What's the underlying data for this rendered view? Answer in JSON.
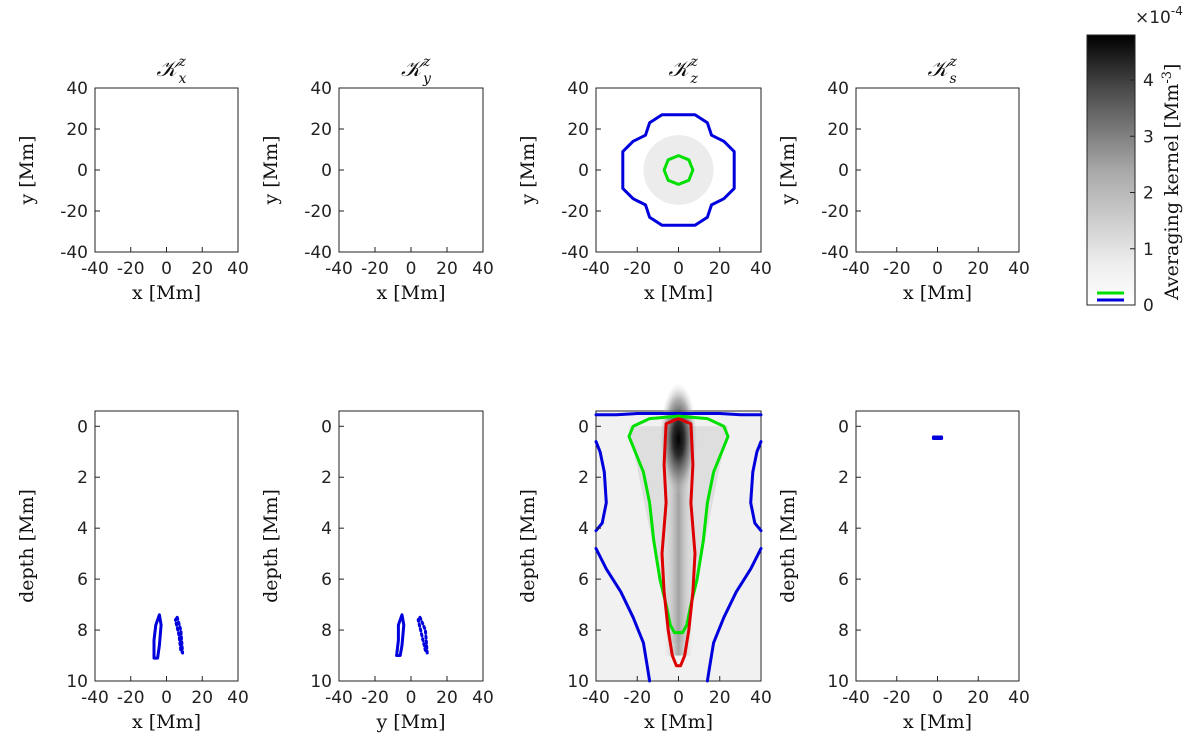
{
  "figure": {
    "colorbar": {
      "label": "Averaging kernel [Mm",
      "label_sup": "-3",
      "label_end": "]",
      "exponent_prefix": "×10",
      "exponent_sup": "-4",
      "range": [
        0,
        4.8
      ],
      "ticks": [
        "0",
        "1",
        "2",
        "3",
        "4"
      ],
      "legend_swatches": [
        "#00e000",
        "#0000dd"
      ]
    }
  },
  "chart_data": [
    {
      "type": "heatmap",
      "title_main": "𝒦",
      "title_sup": "z",
      "title_sub": "x",
      "xlabel": "x [Mm]",
      "ylabel": "y [Mm]",
      "xlim": [
        -40,
        40
      ],
      "ylim": [
        -40,
        40
      ],
      "xticks": [
        "-40",
        "-20",
        "0",
        "20",
        "40"
      ],
      "yticks": [
        "40",
        "20",
        "0",
        "-20",
        "-40"
      ],
      "contours": []
    },
    {
      "type": "heatmap",
      "title_main": "𝒦",
      "title_sup": "z",
      "title_sub": "y",
      "xlabel": "x [Mm]",
      "ylabel": "y [Mm]",
      "xlim": [
        -40,
        40
      ],
      "ylim": [
        -40,
        40
      ],
      "xticks": [
        "-40",
        "-20",
        "0",
        "20",
        "40"
      ],
      "yticks": [
        "40",
        "20",
        "0",
        "-20",
        "-40"
      ],
      "contours": []
    },
    {
      "type": "heatmap",
      "title_main": "𝒦",
      "title_sup": "z",
      "title_sub": "z",
      "xlabel": "x [Mm]",
      "ylabel": "y [Mm]",
      "xlim": [
        -40,
        40
      ],
      "ylim": [
        -40,
        40
      ],
      "xticks": [
        "-40",
        "-20",
        "0",
        "20",
        "40"
      ],
      "yticks": [
        "40",
        "20",
        "0",
        "-20",
        "-40"
      ],
      "contours": [
        {
          "color": "#0000dd",
          "dashed": false,
          "points": [
            [
              0,
              27
            ],
            [
              8,
              27
            ],
            [
              14,
              23
            ],
            [
              16,
              17
            ],
            [
              22,
              14
            ],
            [
              27,
              9
            ],
            [
              27,
              0
            ],
            [
              27,
              -9
            ],
            [
              22,
              -14
            ],
            [
              16,
              -17
            ],
            [
              14,
              -23
            ],
            [
              8,
              -27
            ],
            [
              0,
              -27
            ],
            [
              -8,
              -27
            ],
            [
              -14,
              -23
            ],
            [
              -16,
              -17
            ],
            [
              -22,
              -14
            ],
            [
              -27,
              -9
            ],
            [
              -27,
              0
            ],
            [
              -27,
              9
            ],
            [
              -22,
              14
            ],
            [
              -16,
              17
            ],
            [
              -14,
              23
            ],
            [
              -8,
              27
            ]
          ]
        },
        {
          "color": "#00e000",
          "dashed": false,
          "points": [
            [
              0,
              7
            ],
            [
              5,
              5
            ],
            [
              7,
              0
            ],
            [
              5,
              -5
            ],
            [
              0,
              -7
            ],
            [
              -5,
              -5
            ],
            [
              -7,
              0
            ],
            [
              -5,
              5
            ]
          ]
        }
      ]
    },
    {
      "type": "heatmap",
      "title_main": "𝒦",
      "title_sup": "z",
      "title_sub": "s",
      "xlabel": "x [Mm]",
      "ylabel": "y [Mm]",
      "xlim": [
        -40,
        40
      ],
      "ylim": [
        -40,
        40
      ],
      "xticks": [
        "-40",
        "-20",
        "0",
        "20",
        "40"
      ],
      "yticks": [
        "40",
        "20",
        "0",
        "-20",
        "-40"
      ],
      "contours": []
    },
    {
      "type": "heatmap",
      "xlabel": "x [Mm]",
      "ylabel": "depth [Mm]",
      "xlim": [
        -40,
        40
      ],
      "ylim": [
        -0.6,
        10
      ],
      "xticks": [
        "-40",
        "-20",
        "0",
        "20",
        "40"
      ],
      "yticks": [
        "0",
        "2",
        "4",
        "6",
        "8",
        "10"
      ],
      "contours": [
        {
          "color": "#0000dd",
          "dashed": false,
          "points": [
            [
              -4,
              7.4
            ],
            [
              -3,
              7.8
            ],
            [
              -4,
              8.6
            ],
            [
              -5,
              9.1
            ],
            [
              -7,
              9.1
            ],
            [
              -7,
              8.4
            ],
            [
              -6,
              7.8
            ]
          ]
        },
        {
          "color": "#0000dd",
          "dashed": true,
          "points": [
            [
              6,
              7.5
            ],
            [
              8,
              8.0
            ],
            [
              9,
              8.9
            ],
            [
              8,
              8.8
            ],
            [
              7,
              8.2
            ],
            [
              5,
              7.6
            ]
          ]
        }
      ]
    },
    {
      "type": "heatmap",
      "xlabel": "y [Mm]",
      "ylabel": "depth [Mm]",
      "xlim": [
        -40,
        40
      ],
      "ylim": [
        -0.6,
        10
      ],
      "xticks": [
        "-40",
        "-20",
        "0",
        "20",
        "40"
      ],
      "yticks": [
        "0",
        "2",
        "4",
        "6",
        "8",
        "10"
      ],
      "contours": [
        {
          "color": "#0000dd",
          "dashed": false,
          "points": [
            [
              -5,
              7.4
            ],
            [
              -4,
              7.8
            ],
            [
              -5,
              8.6
            ],
            [
              -6,
              9.0
            ],
            [
              -8,
              9.0
            ],
            [
              -7,
              8.4
            ],
            [
              -7,
              7.8
            ]
          ]
        },
        {
          "color": "#0000dd",
          "dashed": true,
          "points": [
            [
              5,
              7.5
            ],
            [
              8,
              8.0
            ],
            [
              9,
              8.9
            ],
            [
              8,
              8.8
            ],
            [
              6,
              8.2
            ],
            [
              4,
              7.6
            ]
          ]
        }
      ]
    },
    {
      "type": "heatmap",
      "xlabel": "x [Mm]",
      "ylabel": "depth [Mm]",
      "xlim": [
        -40,
        40
      ],
      "ylim": [
        -0.6,
        10
      ],
      "xticks": [
        "-40",
        "-20",
        "0",
        "20",
        "40"
      ],
      "yticks": [
        "0",
        "2",
        "4",
        "6",
        "8",
        "10"
      ],
      "heat": {
        "peak_x": 0,
        "peak_depth": 0.5,
        "max": 4.8
      },
      "contours": [
        {
          "color": "#0000dd",
          "dashed": false,
          "closed": false,
          "points": [
            [
              -40,
              -0.45
            ],
            [
              -30,
              -0.45
            ],
            [
              -20,
              -0.5
            ],
            [
              0,
              -0.5
            ],
            [
              20,
              -0.5
            ],
            [
              30,
              -0.45
            ],
            [
              40,
              -0.45
            ]
          ]
        },
        {
          "color": "#0000dd",
          "dashed": false,
          "closed": false,
          "points": [
            [
              -40,
              0.6
            ],
            [
              -38,
              1.0
            ],
            [
              -36,
              1.8
            ],
            [
              -35,
              3.0
            ],
            [
              -37,
              3.8
            ],
            [
              -40,
              4.1
            ]
          ]
        },
        {
          "color": "#0000dd",
          "dashed": false,
          "closed": false,
          "points": [
            [
              40,
              0.6
            ],
            [
              38,
              1.0
            ],
            [
              36,
              1.8
            ],
            [
              35,
              3.0
            ],
            [
              37,
              3.8
            ],
            [
              40,
              4.1
            ]
          ]
        },
        {
          "color": "#0000dd",
          "dashed": false,
          "closed": false,
          "points": [
            [
              -40,
              4.8
            ],
            [
              -35,
              5.6
            ],
            [
              -28,
              6.5
            ],
            [
              -22,
              7.5
            ],
            [
              -17,
              8.5
            ],
            [
              -15,
              9.5
            ],
            [
              -14,
              10
            ]
          ]
        },
        {
          "color": "#0000dd",
          "dashed": false,
          "closed": false,
          "points": [
            [
              40,
              4.8
            ],
            [
              35,
              5.6
            ],
            [
              28,
              6.5
            ],
            [
              22,
              7.5
            ],
            [
              17,
              8.5
            ],
            [
              15,
              9.5
            ],
            [
              14,
              10
            ]
          ]
        },
        {
          "color": "#00e000",
          "dashed": false,
          "closed": true,
          "points": [
            [
              0,
              -0.4
            ],
            [
              14,
              -0.3
            ],
            [
              22,
              0.0
            ],
            [
              24,
              0.4
            ],
            [
              17,
              1.8
            ],
            [
              14,
              3.0
            ],
            [
              12,
              4.5
            ],
            [
              9,
              6.0
            ],
            [
              6,
              7.0
            ],
            [
              4,
              7.8
            ],
            [
              2,
              8.1
            ],
            [
              -2,
              8.1
            ],
            [
              -4,
              7.8
            ],
            [
              -6,
              7.0
            ],
            [
              -9,
              6.0
            ],
            [
              -12,
              4.5
            ],
            [
              -14,
              3.0
            ],
            [
              -17,
              1.8
            ],
            [
              -24,
              0.4
            ],
            [
              -22,
              0.0
            ],
            [
              -14,
              -0.3
            ]
          ]
        },
        {
          "color": "#dd0000",
          "dashed": false,
          "closed": true,
          "points": [
            [
              0,
              -0.3
            ],
            [
              6,
              -0.1
            ],
            [
              7,
              1.5
            ],
            [
              6,
              3.0
            ],
            [
              8,
              5.0
            ],
            [
              7,
              6.5
            ],
            [
              5,
              8.0
            ],
            [
              3,
              9.0
            ],
            [
              1,
              9.4
            ],
            [
              -1,
              9.4
            ],
            [
              -3,
              9.0
            ],
            [
              -5,
              8.0
            ],
            [
              -7,
              6.5
            ],
            [
              -8,
              5.0
            ],
            [
              -6,
              3.0
            ],
            [
              -7,
              1.5
            ],
            [
              -6,
              -0.1
            ]
          ]
        }
      ]
    },
    {
      "type": "heatmap",
      "xlabel": "x [Mm]",
      "ylabel": "depth [Mm]",
      "xlim": [
        -40,
        40
      ],
      "ylim": [
        -0.6,
        10
      ],
      "xticks": [
        "-40",
        "-20",
        "0",
        "20",
        "40"
      ],
      "yticks": [
        "0",
        "2",
        "4",
        "6",
        "8",
        "10"
      ],
      "contours": [
        {
          "color": "#0000dd",
          "dashed": false,
          "points": [
            [
              -2,
              0.42
            ],
            [
              2,
              0.42
            ],
            [
              2,
              0.48
            ],
            [
              -2,
              0.48
            ]
          ]
        }
      ]
    }
  ]
}
